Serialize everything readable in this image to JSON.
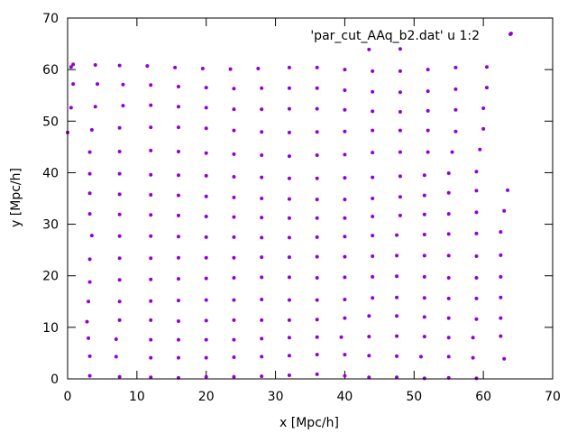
{
  "chart_data": {
    "type": "scatter",
    "title": "",
    "xlabel": "x [Mpc/h]",
    "ylabel": "y [Mpc/h]",
    "xlim": [
      0,
      70
    ],
    "ylim": [
      0,
      70
    ],
    "xticks": [
      0,
      10,
      20,
      30,
      40,
      50,
      60,
      70
    ],
    "yticks": [
      0,
      10,
      20,
      30,
      40,
      50,
      60,
      70
    ],
    "grid": false,
    "legend_position": "top-right",
    "series": [
      {
        "name": "'par_cut_AAq_b2.dat' u 1:2",
        "color": "#9400d3",
        "points": [
          [
            0.5,
            60.5
          ],
          [
            0.8,
            61.0
          ],
          [
            4.0,
            60.9
          ],
          [
            7.5,
            60.8
          ],
          [
            11.5,
            60.7
          ],
          [
            15.5,
            60.4
          ],
          [
            19.5,
            60.2
          ],
          [
            23.5,
            60.1
          ],
          [
            27.5,
            60.2
          ],
          [
            32.0,
            60.4
          ],
          [
            36.0,
            60.4
          ],
          [
            40.0,
            60.0
          ],
          [
            44.0,
            59.7
          ],
          [
            48.0,
            59.7
          ],
          [
            52.0,
            60.0
          ],
          [
            56.0,
            60.4
          ],
          [
            60.5,
            60.5
          ],
          [
            43.5,
            63.9
          ],
          [
            48.0,
            64.0
          ],
          [
            64.0,
            67.0
          ],
          [
            0.8,
            57.2
          ],
          [
            4.3,
            57.2
          ],
          [
            8.0,
            57.1
          ],
          [
            12.0,
            57.0
          ],
          [
            16.0,
            56.7
          ],
          [
            20.0,
            56.5
          ],
          [
            24.0,
            56.3
          ],
          [
            28.0,
            56.4
          ],
          [
            32.0,
            56.4
          ],
          [
            36.0,
            56.4
          ],
          [
            40.0,
            56.0
          ],
          [
            44.0,
            55.7
          ],
          [
            48.0,
            55.6
          ],
          [
            52.0,
            55.8
          ],
          [
            56.0,
            56.2
          ],
          [
            60.5,
            56.5
          ],
          [
            0.5,
            52.6
          ],
          [
            4.0,
            52.8
          ],
          [
            8.0,
            53.0
          ],
          [
            12.0,
            53.1
          ],
          [
            16.0,
            52.8
          ],
          [
            20.0,
            52.6
          ],
          [
            24.0,
            52.3
          ],
          [
            28.0,
            52.3
          ],
          [
            32.0,
            52.4
          ],
          [
            36.0,
            52.4
          ],
          [
            40.0,
            52.2
          ],
          [
            44.0,
            51.9
          ],
          [
            48.0,
            51.8
          ],
          [
            52.0,
            52.0
          ],
          [
            56.0,
            52.2
          ],
          [
            60.0,
            52.5
          ],
          [
            0.0,
            47.8
          ],
          [
            3.5,
            48.3
          ],
          [
            7.5,
            48.7
          ],
          [
            12.0,
            48.8
          ],
          [
            16.0,
            48.8
          ],
          [
            20.0,
            48.6
          ],
          [
            24.0,
            48.2
          ],
          [
            28.0,
            47.9
          ],
          [
            32.0,
            47.8
          ],
          [
            36.0,
            47.9
          ],
          [
            40.0,
            48.0
          ],
          [
            44.0,
            48.2
          ],
          [
            48.0,
            48.2
          ],
          [
            52.0,
            48.2
          ],
          [
            56.0,
            48.0
          ],
          [
            60.0,
            48.5
          ],
          [
            3.2,
            44.0
          ],
          [
            7.5,
            44.1
          ],
          [
            12.0,
            44.3
          ],
          [
            16.0,
            44.1
          ],
          [
            20.0,
            43.8
          ],
          [
            24.0,
            43.6
          ],
          [
            28.0,
            43.4
          ],
          [
            32.0,
            43.2
          ],
          [
            36.0,
            43.4
          ],
          [
            40.0,
            43.5
          ],
          [
            44.0,
            43.9
          ],
          [
            48.0,
            44.0
          ],
          [
            52.0,
            44.0
          ],
          [
            55.5,
            44.0
          ],
          [
            59.5,
            44.5
          ],
          [
            3.2,
            39.8
          ],
          [
            7.5,
            39.8
          ],
          [
            12.0,
            39.6
          ],
          [
            16.0,
            39.5
          ],
          [
            20.0,
            39.4
          ],
          [
            24.0,
            39.2
          ],
          [
            28.0,
            39.1
          ],
          [
            32.0,
            38.9
          ],
          [
            36.0,
            38.9
          ],
          [
            40.0,
            39.0
          ],
          [
            44.0,
            39.1
          ],
          [
            48.0,
            39.3
          ],
          [
            51.5,
            39.5
          ],
          [
            55.0,
            39.9
          ],
          [
            59.0,
            40.2
          ],
          [
            3.2,
            36.0
          ],
          [
            7.5,
            35.8
          ],
          [
            12.0,
            35.7
          ],
          [
            16.0,
            35.6
          ],
          [
            20.0,
            35.4
          ],
          [
            24.0,
            35.2
          ],
          [
            28.0,
            35.0
          ],
          [
            32.0,
            34.9
          ],
          [
            36.0,
            34.8
          ],
          [
            40.0,
            34.8
          ],
          [
            44.0,
            35.0
          ],
          [
            48.0,
            35.3
          ],
          [
            51.5,
            35.6
          ],
          [
            55.0,
            36.1
          ],
          [
            59.0,
            36.5
          ],
          [
            63.5,
            36.6
          ],
          [
            3.2,
            32.0
          ],
          [
            7.5,
            31.9
          ],
          [
            12.0,
            31.8
          ],
          [
            16.0,
            31.7
          ],
          [
            20.0,
            31.5
          ],
          [
            24.0,
            31.4
          ],
          [
            28.0,
            31.3
          ],
          [
            32.0,
            31.2
          ],
          [
            36.0,
            31.2
          ],
          [
            40.0,
            31.2
          ],
          [
            44.0,
            31.5
          ],
          [
            48.0,
            31.7
          ],
          [
            51.5,
            31.9
          ],
          [
            55.0,
            32.0
          ],
          [
            59.0,
            32.3
          ],
          [
            63.0,
            32.6
          ],
          [
            3.5,
            27.8
          ],
          [
            7.5,
            27.7
          ],
          [
            12.0,
            27.7
          ],
          [
            16.0,
            27.6
          ],
          [
            20.0,
            27.5
          ],
          [
            24.0,
            27.5
          ],
          [
            28.0,
            27.4
          ],
          [
            32.0,
            27.4
          ],
          [
            36.0,
            27.5
          ],
          [
            40.0,
            27.6
          ],
          [
            44.0,
            27.8
          ],
          [
            47.5,
            27.9
          ],
          [
            51.5,
            28.0
          ],
          [
            55.0,
            28.1
          ],
          [
            59.0,
            28.2
          ],
          [
            62.5,
            28.5
          ],
          [
            3.2,
            23.2
          ],
          [
            7.5,
            23.4
          ],
          [
            12.0,
            23.4
          ],
          [
            16.0,
            23.5
          ],
          [
            20.0,
            23.5
          ],
          [
            24.0,
            23.5
          ],
          [
            28.0,
            23.6
          ],
          [
            32.0,
            23.6
          ],
          [
            36.0,
            23.7
          ],
          [
            40.0,
            23.7
          ],
          [
            44.0,
            23.8
          ],
          [
            47.5,
            23.9
          ],
          [
            51.5,
            23.9
          ],
          [
            55.0,
            23.9
          ],
          [
            59.0,
            23.8
          ],
          [
            62.5,
            24.0
          ],
          [
            3.2,
            18.8
          ],
          [
            7.5,
            19.2
          ],
          [
            12.0,
            19.3
          ],
          [
            16.0,
            19.4
          ],
          [
            20.0,
            19.5
          ],
          [
            24.0,
            19.6
          ],
          [
            28.0,
            19.7
          ],
          [
            32.0,
            19.7
          ],
          [
            36.0,
            19.6
          ],
          [
            40.0,
            19.7
          ],
          [
            44.0,
            19.8
          ],
          [
            47.5,
            19.9
          ],
          [
            51.5,
            19.8
          ],
          [
            55.0,
            19.6
          ],
          [
            59.0,
            19.6
          ],
          [
            62.5,
            19.8
          ],
          [
            3.0,
            15.0
          ],
          [
            7.5,
            15.0
          ],
          [
            12.0,
            15.1
          ],
          [
            16.0,
            15.2
          ],
          [
            20.0,
            15.3
          ],
          [
            24.0,
            15.3
          ],
          [
            28.0,
            15.4
          ],
          [
            32.0,
            15.3
          ],
          [
            36.0,
            15.3
          ],
          [
            40.0,
            15.4
          ],
          [
            44.0,
            15.7
          ],
          [
            47.5,
            15.8
          ],
          [
            51.5,
            15.7
          ],
          [
            55.0,
            15.6
          ],
          [
            59.0,
            15.6
          ],
          [
            62.5,
            15.8
          ],
          [
            2.8,
            11.1
          ],
          [
            7.5,
            11.4
          ],
          [
            12.0,
            11.4
          ],
          [
            16.0,
            11.2
          ],
          [
            20.0,
            11.3
          ],
          [
            24.0,
            11.4
          ],
          [
            28.0,
            11.4
          ],
          [
            32.0,
            11.4
          ],
          [
            36.0,
            11.5
          ],
          [
            40.0,
            11.8
          ],
          [
            43.5,
            12.2
          ],
          [
            47.5,
            12.2
          ],
          [
            51.5,
            12.0
          ],
          [
            55.0,
            11.8
          ],
          [
            59.0,
            11.6
          ],
          [
            62.5,
            11.8
          ],
          [
            3.0,
            7.9
          ],
          [
            7.0,
            7.7
          ],
          [
            12.0,
            7.6
          ],
          [
            16.0,
            7.6
          ],
          [
            20.0,
            7.6
          ],
          [
            24.0,
            7.6
          ],
          [
            28.0,
            7.8
          ],
          [
            32.0,
            8.0
          ],
          [
            36.0,
            8.1
          ],
          [
            39.5,
            8.1
          ],
          [
            43.5,
            8.2
          ],
          [
            47.5,
            8.3
          ],
          [
            51.5,
            8.2
          ],
          [
            55.0,
            8.0
          ],
          [
            58.5,
            8.0
          ],
          [
            62.5,
            8.3
          ],
          [
            3.2,
            4.4
          ],
          [
            7.0,
            4.3
          ],
          [
            12.0,
            4.1
          ],
          [
            16.0,
            4.1
          ],
          [
            20.0,
            4.1
          ],
          [
            24.0,
            4.2
          ],
          [
            28.0,
            4.3
          ],
          [
            32.0,
            4.5
          ],
          [
            36.0,
            4.7
          ],
          [
            40.0,
            4.7
          ],
          [
            43.5,
            4.5
          ],
          [
            47.5,
            4.4
          ],
          [
            51.0,
            4.3
          ],
          [
            55.0,
            4.3
          ],
          [
            58.5,
            4.1
          ],
          [
            63.0,
            3.9
          ],
          [
            3.2,
            0.6
          ],
          [
            7.5,
            0.4
          ],
          [
            12.0,
            0.3
          ],
          [
            16.0,
            0.2
          ],
          [
            20.0,
            0.4
          ],
          [
            24.0,
            0.4
          ],
          [
            28.0,
            0.5
          ],
          [
            32.0,
            0.7
          ],
          [
            36.0,
            0.9
          ],
          [
            40.0,
            0.6
          ],
          [
            43.5,
            0.3
          ],
          [
            47.5,
            0.3
          ],
          [
            51.5,
            0.1
          ],
          [
            55.0,
            0.2
          ],
          [
            59.0,
            0.1
          ]
        ]
      }
    ]
  }
}
